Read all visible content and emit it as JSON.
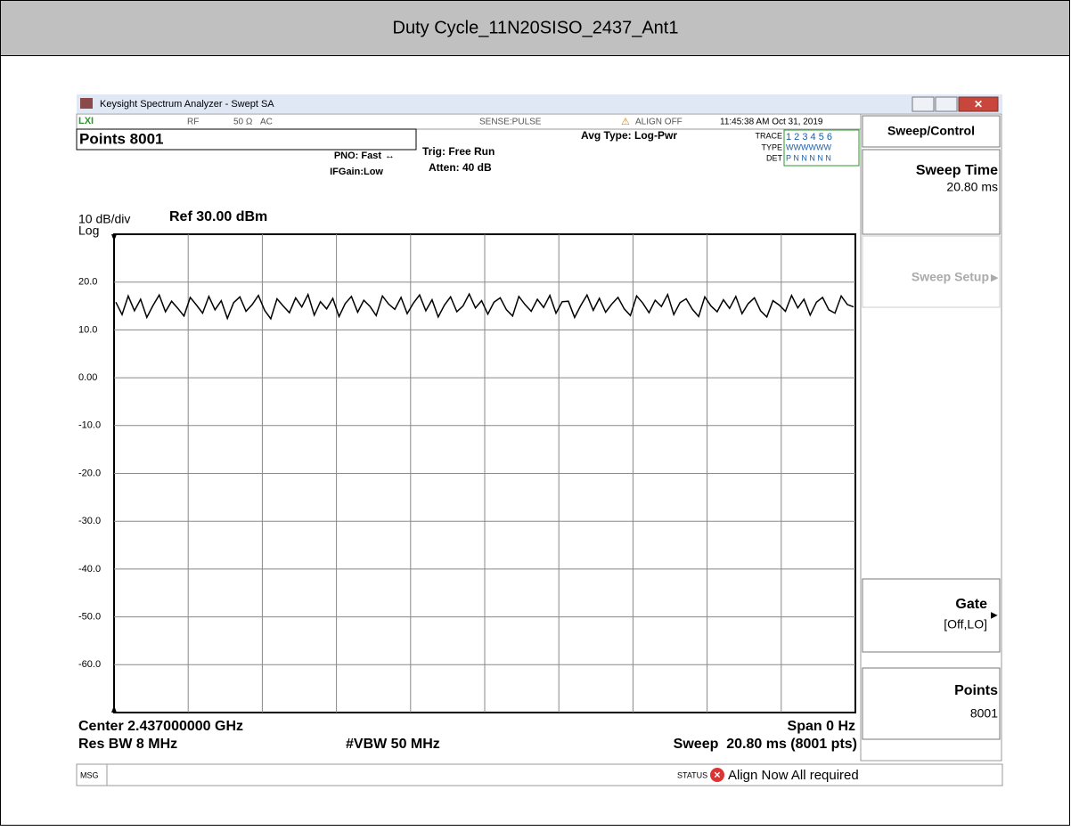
{
  "header": {
    "title": "Duty Cycle_11N20SISO_2437_Ant1"
  },
  "window": {
    "title": "Keysight Spectrum Analyzer - Swept SA",
    "status_row": [
      "RF",
      "50 Ω",
      "AC",
      "SENSE:PULSE",
      "ALIGN OFF",
      "11:45:38 AM Oct 31, 2019"
    ],
    "points_field": "Points 8001",
    "pno": "PNO: Fast",
    "ifgain": "IFGain:Low",
    "trig": "Trig: Free Run",
    "atten": "Atten: 40 dB",
    "avg_type": "Avg Type: Log-Pwr",
    "trace_label": "TRACE",
    "trace_nums": "1 2 3 4 5 6",
    "type_label": "TYPE",
    "type_vals": "WWWWWW",
    "det_label": "DET",
    "det_vals": "P N N N N N",
    "scale": "10 dB/div",
    "ref": "Ref 30.00 dBm",
    "log": "Log",
    "center": "Center 2.437000000 GHz",
    "span": "Span 0 Hz",
    "rbw": "Res BW 8 MHz",
    "vbw": "#VBW 50 MHz",
    "sweep": "Sweep  20.80 ms (8001 pts)",
    "msg": "MSG",
    "status": "STATUS",
    "status_text": "Align Now All required"
  },
  "menu": {
    "title": "Sweep/Control",
    "sweep_time": "Sweep Time",
    "sweep_time_value": "20.80 ms",
    "sweep_setup": "Sweep Setup",
    "gate": "Gate",
    "gate_value": "[Off,LO]",
    "points": "Points",
    "points_value": "8001"
  },
  "chart_data": {
    "type": "line",
    "color": "#000000",
    "ylim": [
      -70,
      30
    ],
    "grid": true,
    "yticks": [
      {
        "value": 20,
        "label": "20.0"
      },
      {
        "value": 10,
        "label": "10.0"
      },
      {
        "value": 0,
        "label": "0.00"
      },
      {
        "value": -10,
        "label": "-10.0"
      },
      {
        "value": -20,
        "label": "-20.0"
      },
      {
        "value": -30,
        "label": "-30.0"
      },
      {
        "value": -40,
        "label": "-40.0"
      },
      {
        "value": -50,
        "label": "-50.0"
      },
      {
        "value": -60,
        "label": "-60.0"
      }
    ],
    "values": [
      15.8,
      13.2,
      17.1,
      14.0,
      16.4,
      12.6,
      15.1,
      17.3,
      13.8,
      16.0,
      14.5,
      12.9,
      16.8,
      15.2,
      13.5,
      17.0,
      14.2,
      16.1,
      12.4,
      15.7,
      16.9,
      13.9,
      15.3,
      17.2,
      14.1,
      12.3,
      16.5,
      15.0,
      13.6,
      16.7,
      14.8,
      17.4,
      13.1,
      15.9,
      14.4,
      16.6,
      12.8,
      15.5,
      17.0,
      13.7,
      16.2,
      14.9,
      13.0,
      17.1,
      15.4,
      14.3,
      16.8,
      13.4,
      15.6,
      17.3,
      14.0,
      16.3,
      12.7,
      15.2,
      16.9,
      13.8,
      15.0,
      17.5,
      14.6,
      16.1,
      13.3,
      15.8,
      16.7,
      14.2,
      12.9,
      17.0,
      15.3,
      13.9,
      16.4,
      14.7,
      17.2,
      13.5,
      15.9,
      16.0,
      12.6,
      15.1,
      17.3,
      14.1,
      16.6,
      13.7,
      15.4,
      16.8,
      14.4,
      13.0,
      17.1,
      15.6,
      13.6,
      16.2,
      14.9,
      17.4,
      13.2,
      15.7,
      16.5,
      14.3,
      12.8,
      16.9,
      15.0,
      13.8,
      16.3,
      14.5,
      17.0,
      13.4,
      15.5,
      16.7,
      14.0,
      12.7,
      16.1,
      15.2,
      13.9,
      17.2,
      14.6,
      16.4,
      13.1,
      15.8,
      16.8,
      14.2,
      13.5,
      17.1,
      15.3,
      14.8
    ]
  }
}
